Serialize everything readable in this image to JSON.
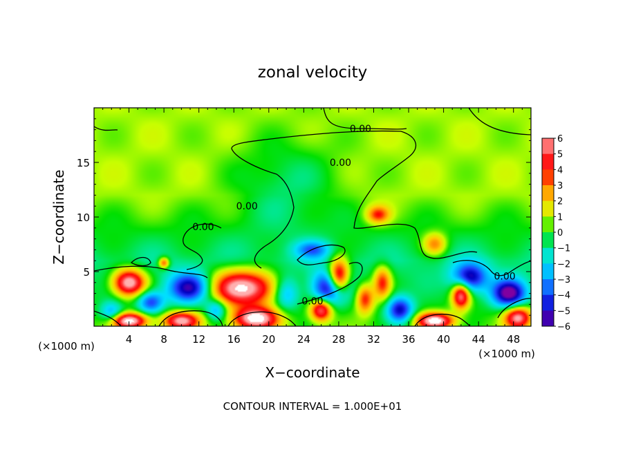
{
  "chart_data": {
    "type": "heatmap",
    "title": "zonal velocity",
    "xlabel": "X−coordinate",
    "ylabel": "Z−coordinate",
    "x_unit_left": "(×1000 m)",
    "x_unit_right": "(×1000 m)",
    "footer": "CONTOUR INTERVAL = 1.000E+01",
    "xlim": [
      0,
      50
    ],
    "ylim": [
      0,
      20
    ],
    "x_ticks": [
      4,
      8,
      12,
      16,
      20,
      24,
      28,
      32,
      36,
      40,
      44,
      48
    ],
    "y_ticks": [
      5,
      10,
      15
    ],
    "colorbar": {
      "min": -6,
      "max": 6,
      "tick_values": [
        6,
        5,
        4,
        3,
        2,
        1,
        0,
        -1,
        -2,
        -3,
        -4,
        -5,
        -6
      ],
      "tick_labels": [
        "6",
        "5",
        "4",
        "3",
        "2",
        "1",
        "0",
        "−1",
        "−2",
        "−3",
        "−4",
        "−5",
        "−6"
      ],
      "colors": [
        "#ffb0b0",
        "#ff3030",
        "#ff0000",
        "#ff8000",
        "#ffd000",
        "#c8ff00",
        "#00e000",
        "#00e8a0",
        "#00e0ff",
        "#00a0ff",
        "#2040ff",
        "#0000c0",
        "#8000a0"
      ]
    },
    "contour_labels": [
      {
        "text": "0.00",
        "x": 30.5,
        "y": 18.1
      },
      {
        "text": "0.00",
        "x": 28.2,
        "y": 15.0
      },
      {
        "text": "0.00",
        "x": 17.5,
        "y": 11.0
      },
      {
        "text": "0.00",
        "x": 12.5,
        "y": 9.1
      },
      {
        "text": "0.00",
        "x": 25.0,
        "y": 2.3
      },
      {
        "text": "0.00",
        "x": 47.0,
        "y": 4.6
      }
    ],
    "features": [
      {
        "label": "weak easterly upper plume",
        "cx": 22,
        "cz": 13,
        "value": -1.5,
        "rx": 6,
        "rz": 4
      },
      {
        "label": "positive core",
        "cx": 32.5,
        "cz": 10.2,
        "value": 3.5,
        "rx": 1.3,
        "rz": 0.8
      },
      {
        "label": "positive core",
        "cx": 39,
        "cz": 7.5,
        "value": 3,
        "rx": 1.3,
        "rz": 1
      },
      {
        "label": "positive core",
        "cx": 8,
        "cz": 5.8,
        "value": 4,
        "rx": 0.6,
        "rz": 0.5
      },
      {
        "label": "positive core",
        "cx": 4,
        "cz": 4,
        "value": 7,
        "rx": 1.8,
        "rz": 1.2
      },
      {
        "label": "positive core",
        "cx": 17,
        "cz": 3.5,
        "value": 7,
        "rx": 4,
        "rz": 1.6
      },
      {
        "label": "positive core",
        "cx": 28,
        "cz": 4.5,
        "value": 7,
        "rx": 1.2,
        "rz": 1.6
      },
      {
        "label": "positive core",
        "cx": 33,
        "cz": 4,
        "value": 4,
        "rx": 1,
        "rz": 1.5
      },
      {
        "label": "positive core",
        "cx": 42,
        "cz": 2.8,
        "value": 6,
        "rx": 1,
        "rz": 1.2
      },
      {
        "label": "positive core",
        "cx": 26,
        "cz": 1.5,
        "value": 6,
        "rx": 1.2,
        "rz": 1
      },
      {
        "label": "positive core",
        "cx": 31,
        "cz": 2.5,
        "value": 4,
        "rx": 1,
        "rz": 1.3
      },
      {
        "label": "positive core",
        "cx": 10,
        "cz": 0.5,
        "value": 6,
        "rx": 2,
        "rz": 0.8
      },
      {
        "label": "positive core",
        "cx": 18.5,
        "cz": 0.7,
        "value": 7,
        "rx": 2.5,
        "rz": 1.0
      },
      {
        "label": "positive core",
        "cx": 4,
        "cz": 0.5,
        "value": 7,
        "rx": 2,
        "rz": 0.7
      },
      {
        "label": "positive core",
        "cx": 39,
        "cz": 0.5,
        "value": 7,
        "rx": 2,
        "rz": 0.7
      },
      {
        "label": "positive core",
        "cx": 48.5,
        "cz": 0.8,
        "value": 6,
        "rx": 1.5,
        "rz": 1
      },
      {
        "label": "negative core",
        "cx": 11,
        "cz": 3.5,
        "value": -5.5,
        "rx": 2.5,
        "rz": 1.4
      },
      {
        "label": "negative core",
        "cx": 6.5,
        "cz": 2.2,
        "value": -4,
        "rx": 1.5,
        "rz": 1
      },
      {
        "label": "negative core",
        "cx": 22,
        "cz": 3,
        "value": -3,
        "rx": 1.5,
        "rz": 1.5
      },
      {
        "label": "negative core",
        "cx": 27,
        "cz": 3.5,
        "value": -5.5,
        "rx": 2,
        "rz": 1.6
      },
      {
        "label": "negative core",
        "cx": 35,
        "cz": 1.5,
        "value": -5,
        "rx": 1.5,
        "rz": 1.2
      },
      {
        "label": "negative core",
        "cx": 43,
        "cz": 4.5,
        "value": -5,
        "rx": 2,
        "rz": 1.3
      },
      {
        "label": "negative core",
        "cx": 47.5,
        "cz": 3.0,
        "value": -6,
        "rx": 2,
        "rz": 1.3
      },
      {
        "label": "negative core",
        "cx": 25,
        "cz": 7,
        "value": -3,
        "rx": 2,
        "rz": 0.8
      },
      {
        "label": "negative core",
        "cx": 14,
        "cz": 1.5,
        "value": -3,
        "rx": 1.2,
        "rz": 1
      },
      {
        "label": "negative core",
        "cx": 2,
        "cz": 1.2,
        "value": -3,
        "rx": 1.3,
        "rz": 1
      }
    ],
    "background": {
      "upper": 0.8,
      "mid": -0.8,
      "lower": 0.3
    }
  }
}
